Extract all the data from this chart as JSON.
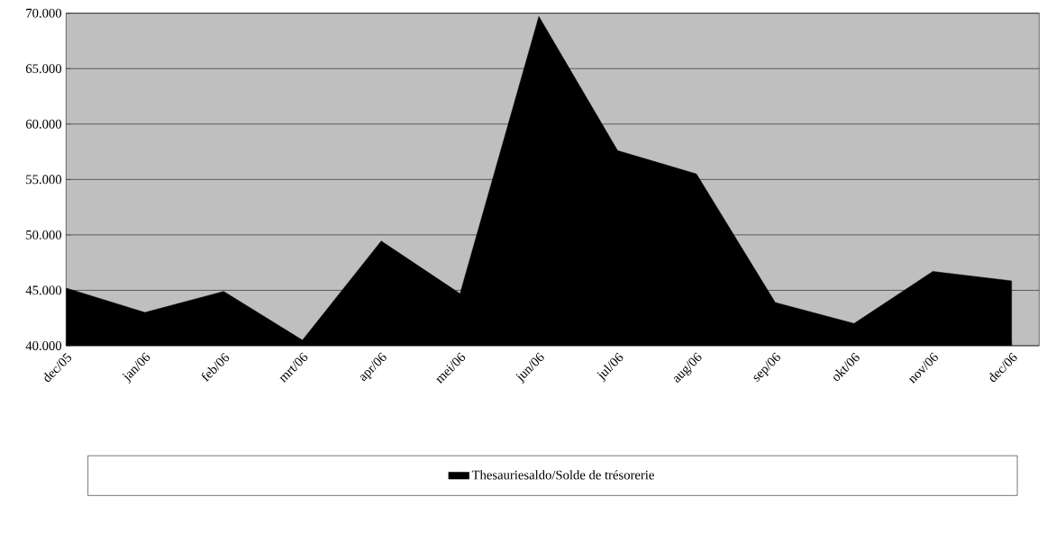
{
  "chart_data": {
    "type": "area",
    "categories": [
      "dec/05",
      "jan/06",
      "feb/06",
      "mrt/06",
      "apr/06",
      "mei/06",
      "jun/06",
      "jul/06",
      "aug/06",
      "sep/06",
      "okt/06",
      "nov/06",
      "dec/06"
    ],
    "series": [
      {
        "name": "Thesauriesaldo/Solde de trésorerie",
        "color": "#000000",
        "values": [
          45200,
          43000,
          44900,
          40500,
          49450,
          44700,
          69700,
          57600,
          55500,
          43900,
          42000,
          46700,
          45850
        ]
      }
    ],
    "ylim": [
      40000,
      70000
    ],
    "yticks": [
      {
        "value": 40000,
        "label": "40.000"
      },
      {
        "value": 45000,
        "label": "45.000"
      },
      {
        "value": 50000,
        "label": "50.000"
      },
      {
        "value": 55000,
        "label": "55.000"
      },
      {
        "value": 60000,
        "label": "60.000"
      },
      {
        "value": 65000,
        "label": "65.000"
      },
      {
        "value": 70000,
        "label": "70.000"
      }
    ],
    "grid": "y",
    "legend": "bottom"
  }
}
